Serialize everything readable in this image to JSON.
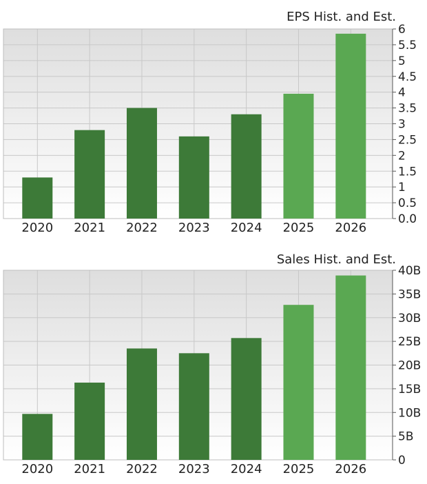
{
  "charts": [
    {
      "title": "EPS Hist. and Est.",
      "chart_data": {
        "type": "bar",
        "categories": [
          "2020",
          "2021",
          "2022",
          "2023",
          "2024",
          "2025",
          "2026"
        ],
        "values": [
          1.3,
          2.8,
          3.5,
          2.6,
          3.3,
          3.95,
          5.85
        ],
        "estimate_flags": [
          false,
          false,
          false,
          false,
          false,
          true,
          true
        ],
        "ylim": [
          0,
          6
        ],
        "yticks": [
          "0.0",
          "0.5",
          "1",
          "1.5",
          "2",
          "2.5",
          "3",
          "3.5",
          "4",
          "4.5",
          "5",
          "5.5",
          "6"
        ],
        "ytick_values": [
          0,
          0.5,
          1,
          1.5,
          2,
          2.5,
          3,
          3.5,
          4,
          4.5,
          5,
          5.5,
          6
        ],
        "grid": true,
        "y_axis_side": "right"
      }
    },
    {
      "title": "Sales Hist. and Est.",
      "chart_data": {
        "type": "bar",
        "categories": [
          "2020",
          "2021",
          "2022",
          "2023",
          "2024",
          "2025",
          "2026"
        ],
        "values": [
          9.7,
          16.3,
          23.5,
          22.5,
          25.7,
          32.7,
          38.9
        ],
        "estimate_flags": [
          false,
          false,
          false,
          false,
          false,
          true,
          true
        ],
        "ylim": [
          0,
          40
        ],
        "yticks": [
          "0",
          "5B",
          "10B",
          "15B",
          "20B",
          "25B",
          "30B",
          "35B",
          "40B"
        ],
        "ytick_values": [
          0,
          5,
          10,
          15,
          20,
          25,
          30,
          35,
          40
        ],
        "grid": true,
        "y_axis_side": "right"
      }
    }
  ],
  "colors": {
    "historical": "#3d7a38",
    "estimate": "#5aa852",
    "grid": "#c8c8c8",
    "bg_top": "#dedede",
    "bg_bottom": "#ffffff"
  }
}
